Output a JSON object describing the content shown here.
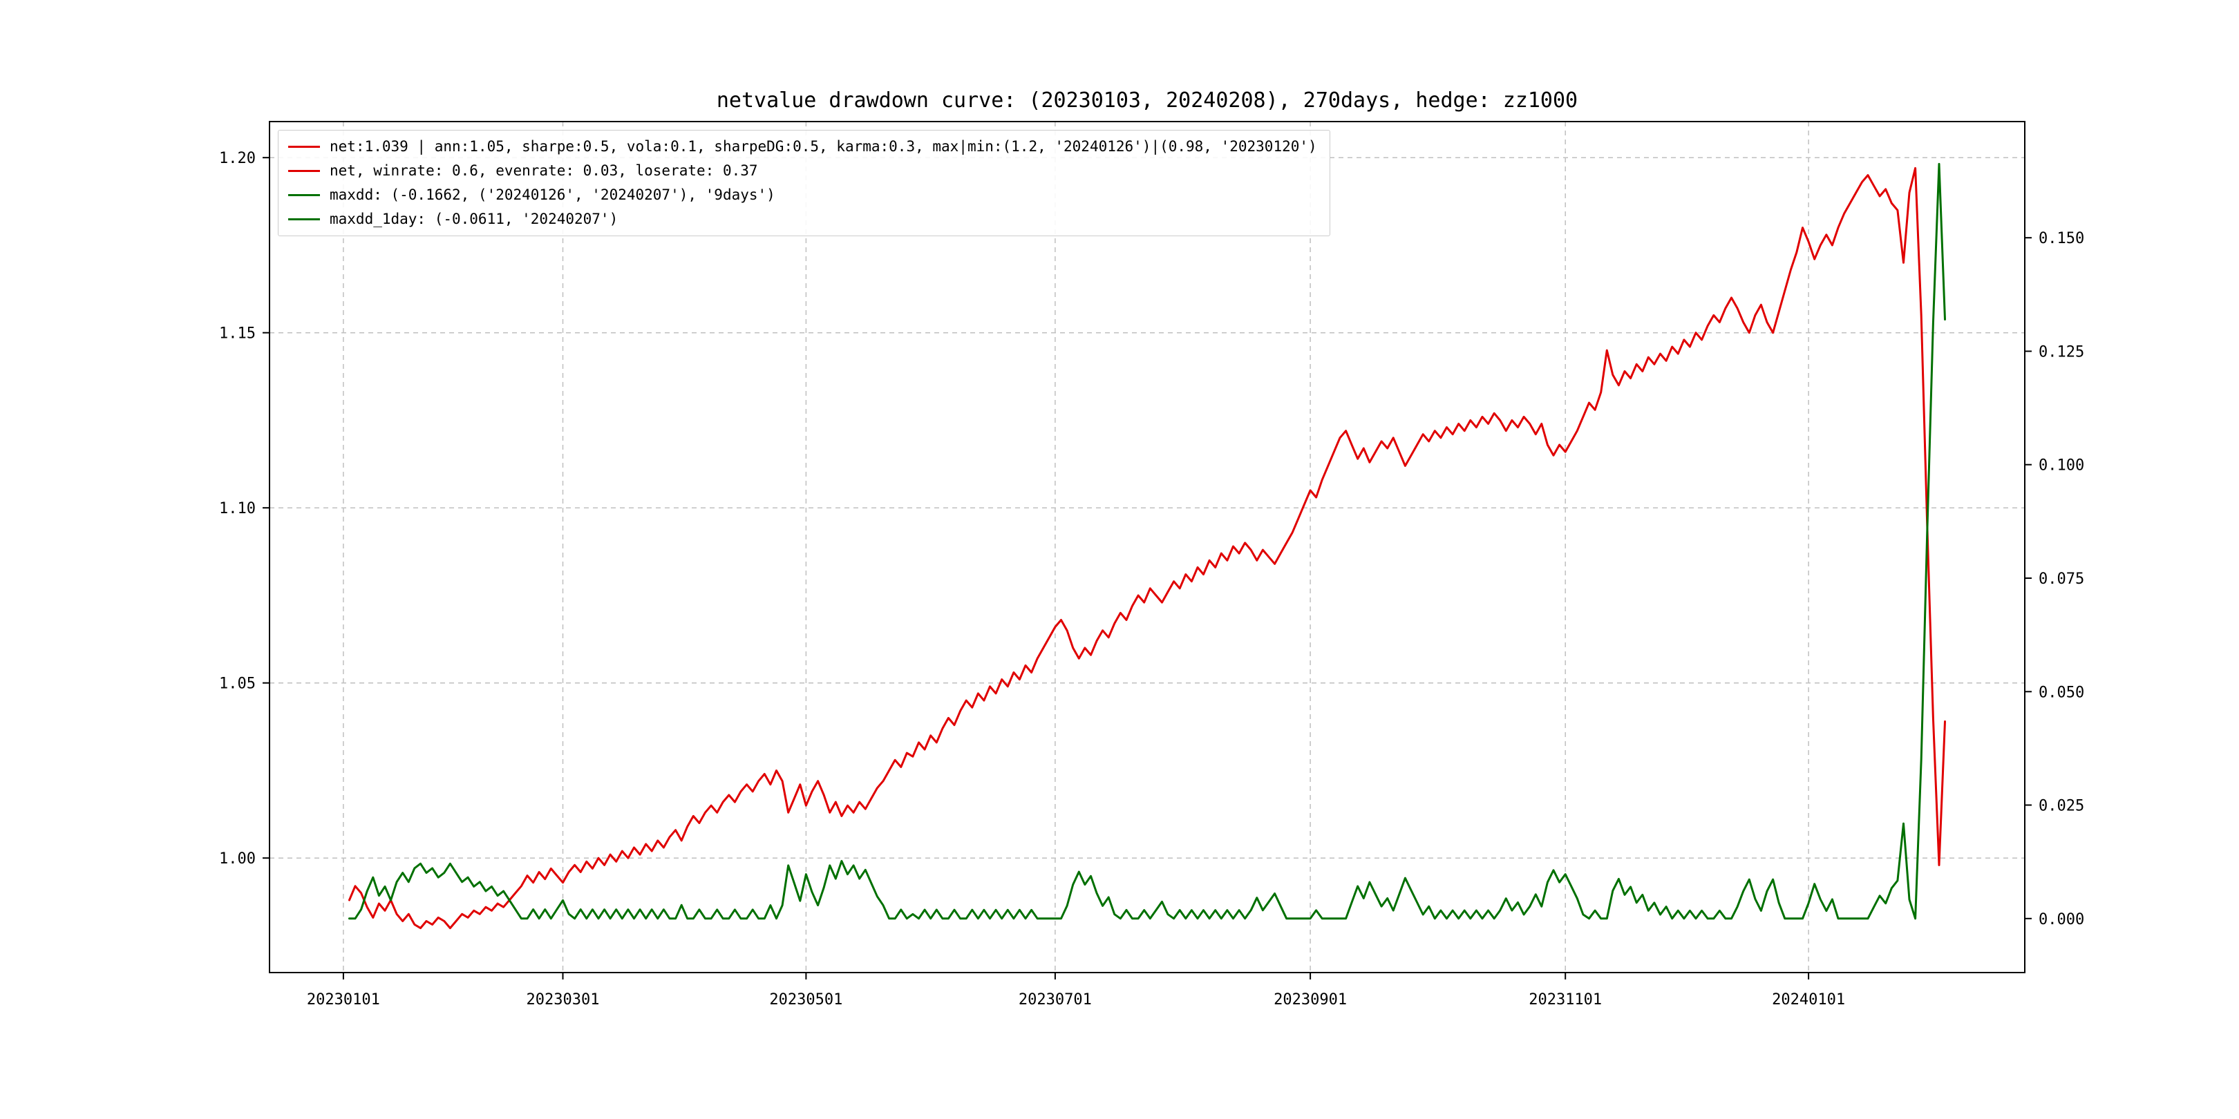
{
  "title": "netvalue drawdown curve: (20230103, 20240208), 270days, hedge: zz1000",
  "colors": {
    "net_line": "#e00000",
    "drawdown_line": "#007000",
    "grid": "#bfbfbf",
    "spine": "#000000",
    "background": "#ffffff"
  },
  "legend": {
    "position": "upper left",
    "entries": [
      {
        "color": "#e00000",
        "label": "net:1.039 | ann:1.05, sharpe:0.5, vola:0.1, sharpeDG:0.5, karma:0.3, max|min:(1.2, '20240126')|(0.98, '20230120')"
      },
      {
        "color": "#e00000",
        "label": "net, winrate: 0.6, evenrate: 0.03, loserate: 0.37"
      },
      {
        "color": "#007000",
        "label": "maxdd: (-0.1662, ('20240126', '20240207'), '9days')"
      },
      {
        "color": "#007000",
        "label": "maxdd_1day: (-0.0611, '20240207')"
      }
    ]
  },
  "chart_data": {
    "type": "line",
    "title": "netvalue drawdown curve: (20230103, 20240208), 270days, hedge: zz1000",
    "xlabel": "",
    "ylabel_left": "",
    "ylabel_right": "",
    "grid": true,
    "legend_position": "upper left",
    "x_unit": "trading-day index starting 20230103 (day 0) ending 20240208 (day 269)",
    "xlim": [
      -13.45,
      282.45
    ],
    "ylim_left": [
      0.9673,
      1.2103
    ],
    "ylim_right": [
      -0.0119,
      0.1756
    ],
    "x_ticks": [
      {
        "pos": -1,
        "label": "20230101"
      },
      {
        "pos": 36,
        "label": "20230301"
      },
      {
        "pos": 77,
        "label": "20230501"
      },
      {
        "pos": 119,
        "label": "20230701"
      },
      {
        "pos": 162,
        "label": "20230901"
      },
      {
        "pos": 205,
        "label": "20231101"
      },
      {
        "pos": 246,
        "label": "20240101"
      }
    ],
    "y_ticks_left": [
      {
        "pos": 1.0,
        "label": "1.00"
      },
      {
        "pos": 1.05,
        "label": "1.05"
      },
      {
        "pos": 1.1,
        "label": "1.10"
      },
      {
        "pos": 1.15,
        "label": "1.15"
      },
      {
        "pos": 1.2,
        "label": "1.20"
      }
    ],
    "y_ticks_right": [
      {
        "pos": 0.0,
        "label": "0.000"
      },
      {
        "pos": 0.025,
        "label": "0.025"
      },
      {
        "pos": 0.05,
        "label": "0.050"
      },
      {
        "pos": 0.075,
        "label": "0.075"
      },
      {
        "pos": 0.1,
        "label": "0.100"
      },
      {
        "pos": 0.125,
        "label": "0.125"
      },
      {
        "pos": 0.15,
        "label": "0.150"
      }
    ],
    "series": [
      {
        "name": "net",
        "axis": "left",
        "color": "#e00000",
        "stats": {
          "net": 1.039,
          "ann": 1.05,
          "sharpe": 0.5,
          "vola": 0.1,
          "sharpeDG": 0.5,
          "karma": 0.3,
          "max": [
            1.2,
            "20240126"
          ],
          "min": [
            0.98,
            "20230120"
          ],
          "winrate": 0.6,
          "evenrate": 0.03,
          "loserate": 0.37
        },
        "values": [
          0.988,
          0.992,
          0.99,
          0.986,
          0.983,
          0.987,
          0.985,
          0.988,
          0.984,
          0.982,
          0.984,
          0.981,
          0.98,
          0.982,
          0.981,
          0.983,
          0.982,
          0.98,
          0.982,
          0.984,
          0.983,
          0.985,
          0.984,
          0.986,
          0.985,
          0.987,
          0.986,
          0.988,
          0.99,
          0.992,
          0.995,
          0.993,
          0.996,
          0.994,
          0.997,
          0.995,
          0.993,
          0.996,
          0.998,
          0.996,
          0.999,
          0.997,
          1.0,
          0.998,
          1.001,
          0.999,
          1.002,
          1.0,
          1.003,
          1.001,
          1.004,
          1.002,
          1.005,
          1.003,
          1.006,
          1.008,
          1.005,
          1.009,
          1.012,
          1.01,
          1.013,
          1.015,
          1.013,
          1.016,
          1.018,
          1.016,
          1.019,
          1.021,
          1.019,
          1.022,
          1.024,
          1.021,
          1.025,
          1.022,
          1.013,
          1.017,
          1.021,
          1.015,
          1.019,
          1.022,
          1.018,
          1.013,
          1.016,
          1.012,
          1.015,
          1.013,
          1.016,
          1.014,
          1.017,
          1.02,
          1.022,
          1.025,
          1.028,
          1.026,
          1.03,
          1.029,
          1.033,
          1.031,
          1.035,
          1.033,
          1.037,
          1.04,
          1.038,
          1.042,
          1.045,
          1.043,
          1.047,
          1.045,
          1.049,
          1.047,
          1.051,
          1.049,
          1.053,
          1.051,
          1.055,
          1.053,
          1.057,
          1.06,
          1.063,
          1.066,
          1.068,
          1.065,
          1.06,
          1.057,
          1.06,
          1.058,
          1.062,
          1.065,
          1.063,
          1.067,
          1.07,
          1.068,
          1.072,
          1.075,
          1.073,
          1.077,
          1.075,
          1.073,
          1.076,
          1.079,
          1.077,
          1.081,
          1.079,
          1.083,
          1.081,
          1.085,
          1.083,
          1.087,
          1.085,
          1.089,
          1.087,
          1.09,
          1.088,
          1.085,
          1.088,
          1.086,
          1.084,
          1.087,
          1.09,
          1.093,
          1.097,
          1.101,
          1.105,
          1.103,
          1.108,
          1.112,
          1.116,
          1.12,
          1.122,
          1.118,
          1.114,
          1.117,
          1.113,
          1.116,
          1.119,
          1.117,
          1.12,
          1.116,
          1.112,
          1.115,
          1.118,
          1.121,
          1.119,
          1.122,
          1.12,
          1.123,
          1.121,
          1.124,
          1.122,
          1.125,
          1.123,
          1.126,
          1.124,
          1.127,
          1.125,
          1.122,
          1.125,
          1.123,
          1.126,
          1.124,
          1.121,
          1.124,
          1.118,
          1.115,
          1.118,
          1.116,
          1.119,
          1.122,
          1.126,
          1.13,
          1.128,
          1.133,
          1.145,
          1.138,
          1.135,
          1.139,
          1.137,
          1.141,
          1.139,
          1.143,
          1.141,
          1.144,
          1.142,
          1.146,
          1.144,
          1.148,
          1.146,
          1.15,
          1.148,
          1.152,
          1.155,
          1.153,
          1.157,
          1.16,
          1.157,
          1.153,
          1.15,
          1.155,
          1.158,
          1.153,
          1.15,
          1.156,
          1.162,
          1.168,
          1.173,
          1.18,
          1.176,
          1.171,
          1.175,
          1.178,
          1.175,
          1.18,
          1.184,
          1.187,
          1.19,
          1.193,
          1.195,
          1.192,
          1.189,
          1.191,
          1.187,
          1.185,
          1.17,
          1.19,
          1.197,
          1.155,
          1.095,
          1.04,
          0.998,
          1.039
        ]
      },
      {
        "name": "drawdown",
        "axis": "right",
        "color": "#007000",
        "derived_from": "net",
        "formula": "1 - net / cummax(net)",
        "stats": {
          "maxdd": -0.1662,
          "maxdd_window": [
            "20240126",
            "20240207"
          ],
          "maxdd_days": "9days",
          "maxdd_1day": -0.0611,
          "maxdd_1day_date": "20240207"
        }
      }
    ]
  }
}
